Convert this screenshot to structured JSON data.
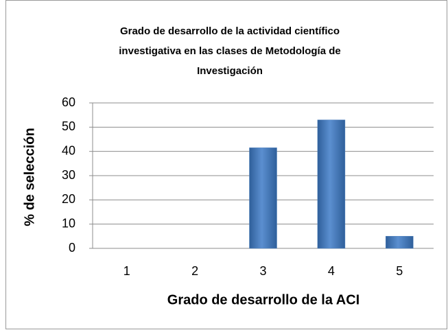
{
  "chart_data": {
    "type": "bar",
    "title": [
      "Grado de desarrollo de la actividad científico",
      "investigativa en las clases de Metodología de",
      "Investigación"
    ],
    "x_label": "Grado de desarrollo de la ACI",
    "y_label": "% de selección",
    "categories": [
      "1",
      "2",
      "3",
      "4",
      "5"
    ],
    "values": [
      0,
      0,
      41.5,
      53,
      5
    ],
    "color": "#4f81bd",
    "ylim": [
      0,
      60
    ],
    "yticks": [
      0,
      10,
      20,
      30,
      40,
      50,
      60
    ],
    "grid": true
  }
}
